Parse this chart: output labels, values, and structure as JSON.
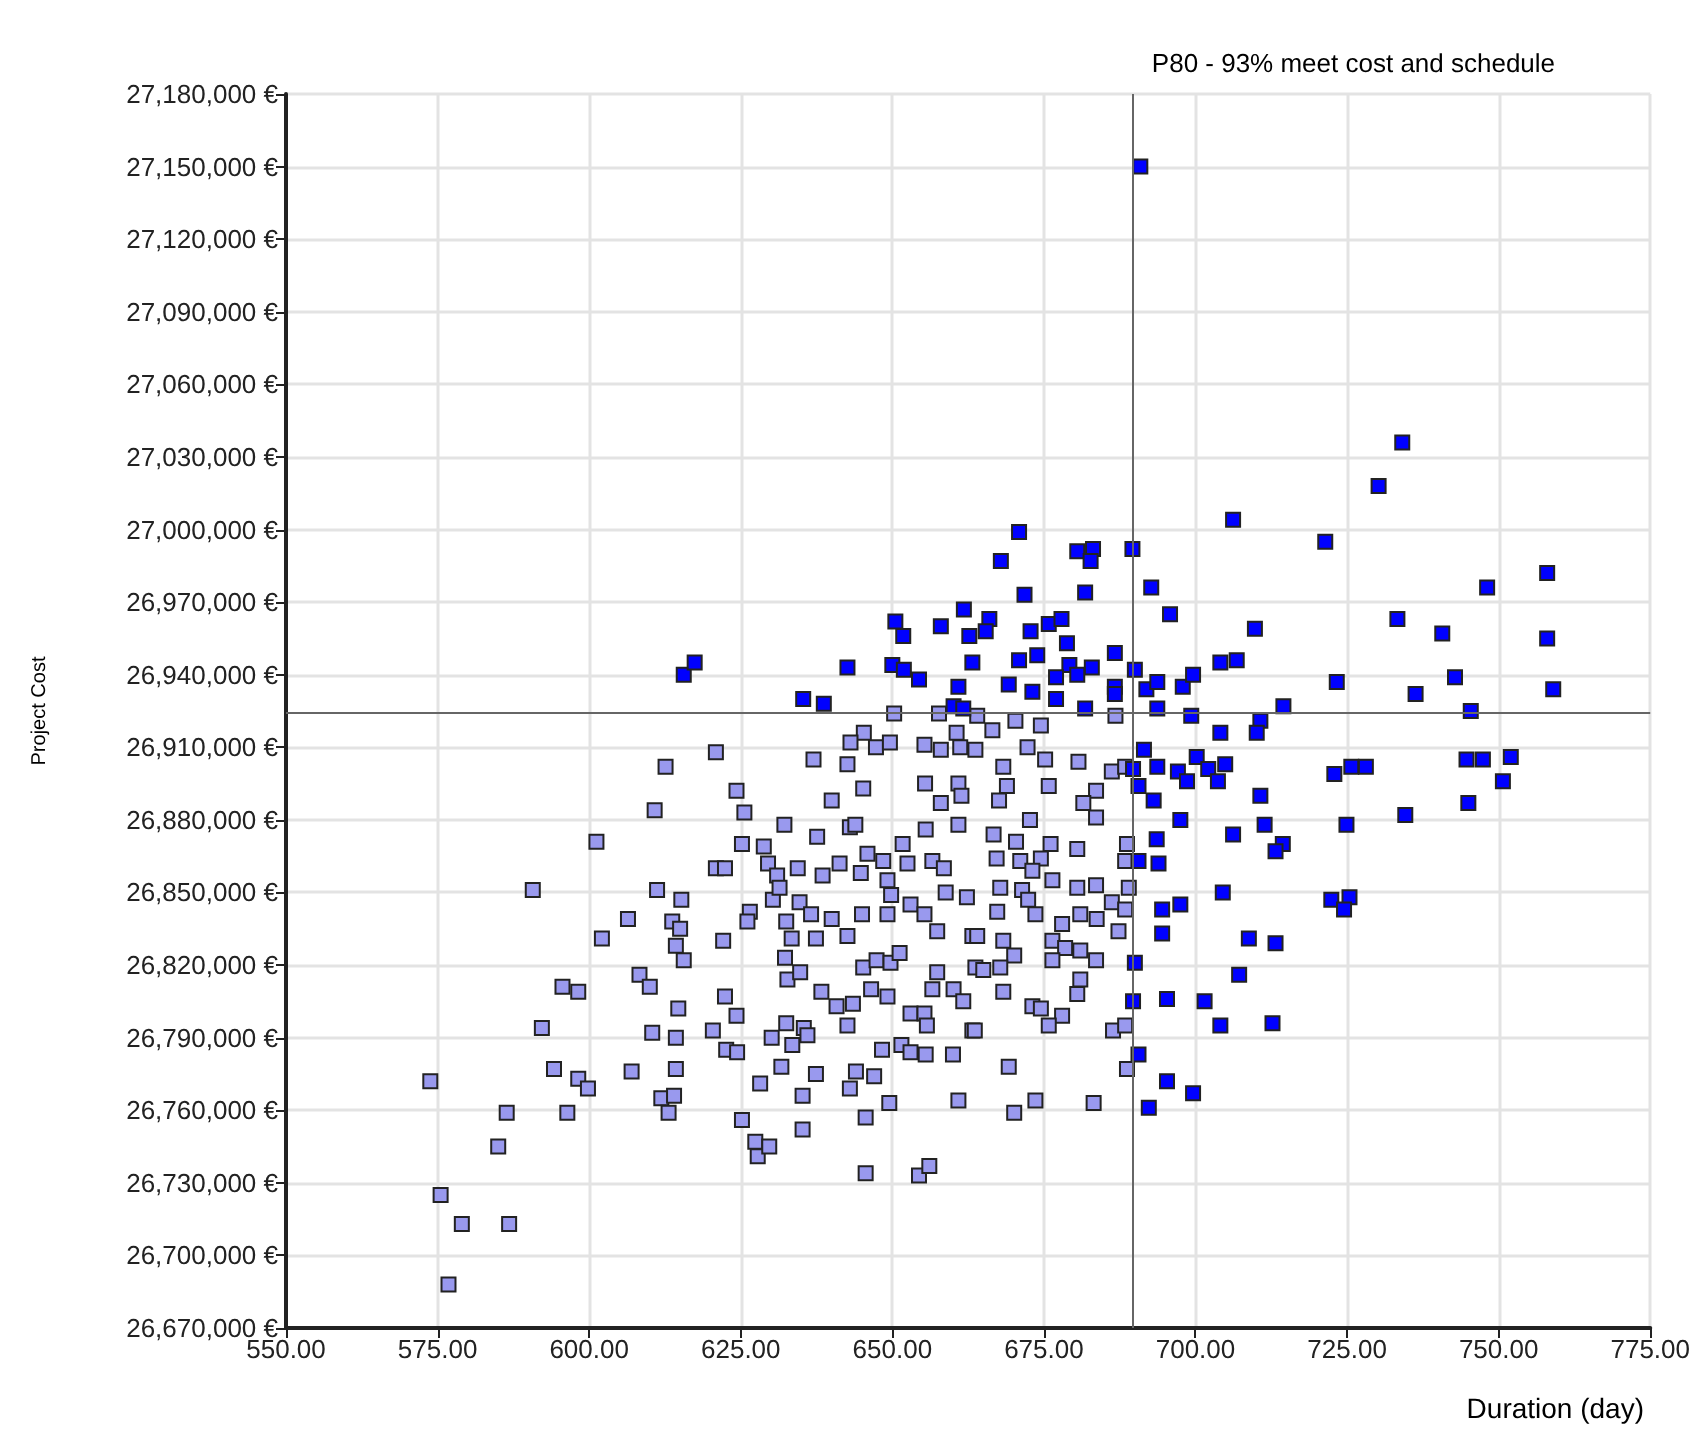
{
  "chart_data": {
    "type": "scatter",
    "xlabel": "Duration (day)",
    "ylabel": "Project Cost",
    "marker": "square",
    "grid": true,
    "xlim": [
      550,
      775
    ],
    "ylim": [
      26670000,
      27180000
    ],
    "xticks": [
      {
        "value": 550,
        "label": "550.00"
      },
      {
        "value": 575,
        "label": "575.00"
      },
      {
        "value": 600,
        "label": "600.00"
      },
      {
        "value": 625,
        "label": "625.00"
      },
      {
        "value": 650,
        "label": "650.00"
      },
      {
        "value": 675,
        "label": "675.00"
      },
      {
        "value": 700,
        "label": "700.00"
      },
      {
        "value": 725,
        "label": "725.00"
      },
      {
        "value": 750,
        "label": "750.00"
      },
      {
        "value": 775,
        "label": "775.00"
      }
    ],
    "yticks": [
      {
        "value": 26670000,
        "label": "26,670,000 €"
      },
      {
        "value": 26700000,
        "label": "26,700,000 €"
      },
      {
        "value": 26730000,
        "label": "26,730,000 €"
      },
      {
        "value": 26760000,
        "label": "26,760,000 €"
      },
      {
        "value": 26790000,
        "label": "26,790,000 €"
      },
      {
        "value": 26820000,
        "label": "26,820,000 €"
      },
      {
        "value": 26850000,
        "label": "26,850,000 €"
      },
      {
        "value": 26880000,
        "label": "26,880,000 €"
      },
      {
        "value": 26910000,
        "label": "26,910,000 €"
      },
      {
        "value": 26940000,
        "label": "26,940,000 €"
      },
      {
        "value": 26970000,
        "label": "26,970,000 €"
      },
      {
        "value": 27000000,
        "label": "27,000,000 €"
      },
      {
        "value": 27030000,
        "label": "27,030,000 €"
      },
      {
        "value": 27060000,
        "label": "27,060,000 €"
      },
      {
        "value": 27090000,
        "label": "27,090,000 €"
      },
      {
        "value": 27120000,
        "label": "27,120,000 €"
      },
      {
        "value": 27150000,
        "label": "27,150,000 €"
      },
      {
        "value": 27180000,
        "label": "27,180,000 €"
      }
    ],
    "ref_lines": [
      {
        "axis": "x",
        "value": 689.5,
        "label": "P80 - 93% meet cost and schedule",
        "color": "#666666"
      },
      {
        "axis": "y",
        "value": 26924500,
        "color": "#666666"
      }
    ],
    "series": [
      {
        "color": "#9999ee",
        "x": [
          573.8,
          575.5,
          576.8,
          579,
          586.8,
          585,
          586.4,
          592.2,
          590.7,
          594.2,
          596.4,
          595.6,
          598.2,
          598.2,
          599.8,
          601.2,
          602.1,
          606.4,
          607,
          608.3,
          610,
          610.4,
          610.8,
          611.2,
          612.6,
          613.7,
          615.2,
          615,
          614.3,
          615.6,
          614.7,
          614.3,
          614.3,
          611.9,
          614,
          613.1,
          620.9,
          620.9,
          622.4,
          622.1,
          620.4,
          624.3,
          625.6,
          625.2,
          622.4,
          624.3,
          622.6,
          624.4,
          625.2,
          627.4,
          627.8,
          629.7,
          628.8,
          629.5,
          626.5,
          626.1,
          630.3,
          631,
          631.4,
          632.2,
          632.5,
          633.4,
          632.3,
          632.7,
          632.5,
          630.1,
          631.7,
          633.5,
          634.7,
          634.8,
          634.4,
          637,
          637.6,
          636.6,
          637.4,
          638.3,
          635.4,
          636,
          635.2,
          635.2,
          628.2,
          637.4,
          640,
          638.5,
          641.3,
          640,
          642.6,
          643,
          643.9,
          642.6,
          640.8,
          643.5,
          642.6,
          643,
          644,
          645.6,
          645.6,
          645,
          644.8,
          645.9,
          645.2,
          645.3,
          643.1,
          647.3,
          649.6,
          650.3,
          645.2,
          646.5,
          649.2,
          647.4,
          649.7,
          651.2,
          648.3,
          647,
          649.5,
          649.2,
          649.8,
          649.2,
          648.5,
          651.7,
          652.5,
          653,
          655.3,
          657.4,
          653,
          655.3,
          655.7,
          655.5,
          651.5,
          653,
          657.4,
          656.6,
          660,
          660.9,
          654.4,
          656.1,
          655.5,
          655.4,
          658,
          656.6,
          658.5,
          658.8,
          662.3,
          660.9,
          661.4,
          660.9,
          660.6,
          661.2,
          658,
          655.3,
          657.7,
          663.2,
          663.7,
          663.2,
          660.1,
          661.7,
          664,
          666.5,
          670.3,
          674.5,
          686.8,
          663.7,
          668.3,
          672.3,
          675.2,
          680.7,
          686.2,
          688.4,
          668.9,
          667.6,
          675.8,
          683.6,
          681.5,
          683.6,
          672.7,
          666.7,
          670.4,
          676.1,
          680.5,
          688.7,
          667.2,
          671.1,
          674.5,
          673.1,
          676.4,
          688.4,
          667.8,
          671.4,
          680.5,
          683.6,
          689,
          667.3,
          672.4,
          673.6,
          681,
          686.2,
          688.4,
          683.7,
          678,
          664,
          668.3,
          676.4,
          678.5,
          681,
          687.3,
          670.1,
          676.4,
          683.6,
          667.8,
          665,
          681,
          680.5,
          668.3,
          673.1,
          674.5,
          678,
          675.8,
          663.6,
          686.4,
          688.4,
          669.2,
          688.7,
          670.1,
          673.6,
          683.2
        ],
        "values": [
          26772000,
          26725000,
          26688000,
          26713000,
          26713000,
          26745000,
          26759000,
          26794000,
          26851000,
          26777000,
          26759000,
          26811000,
          26809000,
          26773000,
          26769000,
          26871000,
          26831000,
          26839000,
          26776000,
          26816000,
          26811000,
          26792000,
          26884000,
          26851000,
          26902000,
          26838000,
          26847000,
          26835000,
          26828000,
          26822000,
          26802000,
          26790000,
          26777000,
          26765000,
          26766000,
          26759000,
          26908000,
          26860000,
          26860000,
          26830000,
          26793000,
          26892000,
          26883000,
          26870000,
          26807000,
          26799000,
          26785000,
          26784000,
          26756000,
          26747000,
          26741000,
          26745000,
          26869000,
          26862000,
          26842000,
          26838000,
          26847000,
          26857000,
          26852000,
          26878000,
          26838000,
          26831000,
          26823000,
          26814000,
          26796000,
          26790000,
          26778000,
          26787000,
          26846000,
          26817000,
          26860000,
          26905000,
          26873000,
          26841000,
          26831000,
          26809000,
          26794000,
          26791000,
          26766000,
          26752000,
          26771000,
          26775000,
          26888000,
          26857000,
          26862000,
          26839000,
          26903000,
          26877000,
          26878000,
          26832000,
          26803000,
          26804000,
          26795000,
          26769000,
          26776000,
          26757000,
          26734000,
          26841000,
          26858000,
          26866000,
          26893000,
          26916000,
          26912000,
          26910000,
          26912000,
          26924000,
          26819000,
          26810000,
          26807000,
          26822000,
          26821000,
          26825000,
          26785000,
          26774000,
          26763000,
          26855000,
          26849000,
          26841000,
          26863000,
          26870000,
          26862000,
          26845000,
          26841000,
          26834000,
          26800000,
          26800000,
          26795000,
          26783000,
          26787000,
          26784000,
          26817000,
          26810000,
          26783000,
          26764000,
          26733000,
          26737000,
          26876000,
          26895000,
          26887000,
          26863000,
          26860000,
          26850000,
          26848000,
          26895000,
          26890000,
          26878000,
          26916000,
          26910000,
          26909000,
          26911000,
          26924000,
          26832000,
          26819000,
          26793000,
          26810000,
          26805000,
          26923000,
          26917000,
          26921000,
          26919000,
          26923000,
          26909000,
          26902000,
          26910000,
          26905000,
          26904000,
          26900000,
          26902000,
          26894000,
          26888000,
          26894000,
          26892000,
          26887000,
          26881000,
          26880000,
          26874000,
          26871000,
          26870000,
          26868000,
          26870000,
          26864000,
          26863000,
          26864000,
          26859000,
          26855000,
          26863000,
          26852000,
          26851000,
          26852000,
          26853000,
          26852000,
          26842000,
          26847000,
          26841000,
          26841000,
          26846000,
          26843000,
          26839000,
          26837000,
          26832000,
          26830000,
          26830000,
          26827000,
          26826000,
          26834000,
          26824000,
          26822000,
          26822000,
          26819000,
          26818000,
          26814000,
          26808000,
          26809000,
          26803000,
          26802000,
          26799000,
          26795000,
          26793000,
          26793000,
          26795000,
          26778000,
          26777000,
          26759000,
          26764000,
          26763000
        ]
      },
      {
        "color": "#0000ff",
        "x": [
          615.6,
          617.4,
          635.3,
          638.7,
          642.6,
          650.5,
          651.8,
          650,
          651.9,
          654.4,
          658,
          661.8,
          662.7,
          663.2,
          660.9,
          660.1,
          690.9,
          670.9,
          667.9,
          680.5,
          683.1,
          682.7,
          689.6,
          671.8,
          681.8,
          692.7,
          706.2,
          721.4,
          730.2,
          734.1,
          758,
          748.1,
          666,
          665.4,
          672.8,
          675.8,
          677.9,
          678.8,
          670.9,
          673.9,
          679.2,
          682.9,
          680.5,
          677,
          669.2,
          673.1,
          677,
          681.8,
          686.7,
          686.7,
          686.7,
          690,
          691.9,
          693.7,
          693.7,
          695.8,
          697.9,
          699.6,
          699.3,
          704.1,
          706.8,
          709.8,
          710.7,
          714.5,
          723.3,
          733.3,
          736.3,
          740.7,
          742.8,
          745.4,
          758,
          759,
          661.7,
          704.1,
          710.1,
          691.5,
          689.7,
          693.7,
          697.1,
          700.2,
          702.1,
          704.9,
          698.6,
          703.7,
          690.6,
          693.1,
          710.7,
          722.9,
          725.7,
          728.1,
          744.7,
          747.4,
          752,
          750.7,
          745,
          734.6,
          724.9,
          711.4,
          706.2,
          697.5,
          693.6,
          690.6,
          693.9,
          714.4,
          713.2,
          704.5,
          697.5,
          694.5,
          694.5,
          708.8,
          713.2,
          722.4,
          725.4,
          724.5,
          690,
          707.2,
          689.7,
          695.3,
          701.5,
          704.1,
          712.7,
          690.6,
          695.3,
          699.6,
          692.3
        ],
        "values": [
          26940000,
          26945000,
          26930000,
          26928000,
          26943000,
          26962000,
          26956000,
          26944000,
          26942000,
          26938000,
          26960000,
          26967000,
          26956000,
          26945000,
          26935000,
          26927000,
          27150000,
          26999000,
          26987000,
          26991000,
          26992000,
          26987000,
          26992000,
          26973000,
          26974000,
          26976000,
          27004000,
          26995000,
          27018000,
          27036000,
          26982000,
          26976000,
          26963000,
          26958000,
          26958000,
          26961000,
          26963000,
          26953000,
          26946000,
          26948000,
          26944000,
          26943000,
          26940000,
          26939000,
          26936000,
          26933000,
          26930000,
          26926000,
          26949000,
          26935000,
          26932000,
          26942000,
          26934000,
          26937000,
          26926000,
          26965000,
          26935000,
          26940000,
          26923000,
          26945000,
          26946000,
          26959000,
          26921000,
          26927000,
          26937000,
          26963000,
          26932000,
          26957000,
          26939000,
          26925000,
          26955000,
          26934000,
          26926000,
          26916000,
          26916000,
          26909000,
          26901000,
          26902000,
          26900000,
          26906000,
          26901000,
          26903000,
          26896000,
          26896000,
          26894000,
          26888000,
          26890000,
          26899000,
          26902000,
          26902000,
          26905000,
          26905000,
          26906000,
          26896000,
          26887000,
          26882000,
          26878000,
          26878000,
          26874000,
          26880000,
          26872000,
          26863000,
          26862000,
          26870000,
          26867000,
          26850000,
          26845000,
          26843000,
          26833000,
          26831000,
          26829000,
          26847000,
          26848000,
          26843000,
          26821000,
          26816000,
          26805000,
          26806000,
          26805000,
          26795000,
          26796000,
          26783000,
          26772000,
          26767000,
          26761000
        ]
      }
    ]
  }
}
